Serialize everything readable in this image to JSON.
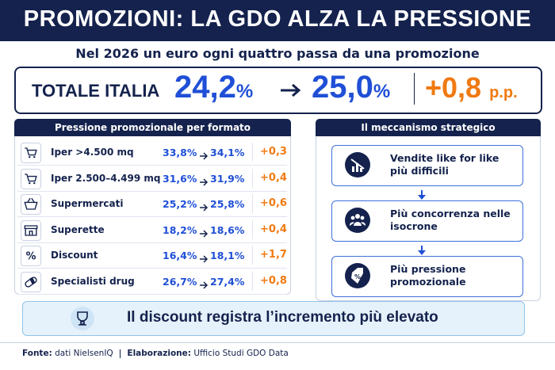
{
  "header": {
    "title": "PROMOZIONI: LA GDO ALZA LA PRESSIONE",
    "subtitle": "Nel 2026 un euro ogni quattro passa da una promozione"
  },
  "total": {
    "label": "TOTALE ITALIA",
    "from": "24,2",
    "to": "25,0",
    "unit": "%",
    "delta": "+0,8",
    "delta_unit": "p.p."
  },
  "table": {
    "title": "Pressione promozionale per formato",
    "rows": [
      [
        "Iper >4.500 mq",
        "33,8%",
        "34,1%",
        "+0,3"
      ],
      [
        "Iper 2.500–4.499 mq",
        "31,6%",
        "31,9%",
        "+0,4"
      ],
      [
        "Supermercati",
        "25,2%",
        "25,8%",
        "+0,6"
      ],
      [
        "Superette",
        "18,2%",
        "18,6%",
        "+0,4"
      ],
      [
        "Discount",
        "16,4%",
        "18,1%",
        "+1,7"
      ],
      [
        "Specialisti drug",
        "26,7%",
        "27,4%",
        "+0,8"
      ]
    ]
  },
  "mechanism": {
    "title": "Il meccanismo strategico",
    "steps": [
      "Vendite like for like più difficili",
      "Più concorrenza nelle isocrone",
      "Più pressione promozionale"
    ]
  },
  "callout": "Il discount registra l’incremento più elevato",
  "footer": {
    "source_label": "Fonte:",
    "source": "dati NielsenIQ",
    "credit_label": "Elaborazione:",
    "credit": "Ufficio Studi GDO Data"
  }
}
